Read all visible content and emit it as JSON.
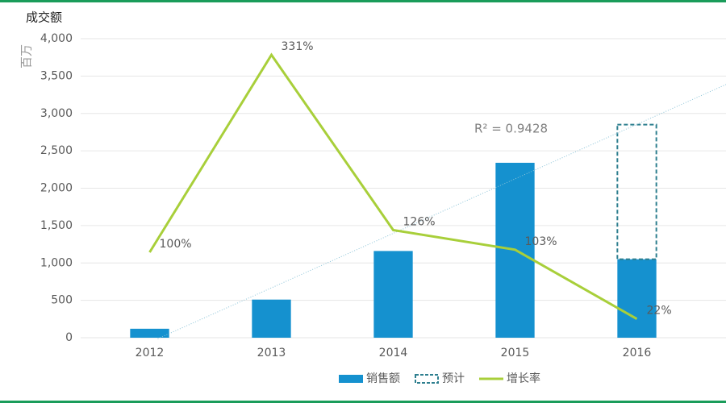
{
  "chart_data": {
    "type": "bar",
    "title": "成交额",
    "y_label": "百万",
    "annotation": "R² = 0.9428",
    "categories": [
      "2012",
      "2013",
      "2014",
      "2015",
      "2016"
    ],
    "series": [
      {
        "name": "销售额",
        "type": "bar",
        "color": "#1591cf",
        "values": [
          120,
          510,
          1160,
          2340,
          1050
        ]
      },
      {
        "name": "预计",
        "type": "bar",
        "stacked": true,
        "dashed": true,
        "color": "#2e7f8f",
        "values": [
          null,
          null,
          null,
          null,
          1800
        ]
      },
      {
        "name": "增长率",
        "type": "line",
        "axis": "y2",
        "color": "#a8cf3a",
        "values": [
          100,
          331,
          126,
          103,
          22
        ],
        "value_labels": [
          "100%",
          "331%",
          "126%",
          "103%",
          "22%"
        ]
      }
    ],
    "ylim": [
      0,
      4000
    ],
    "yticks": [
      0,
      {
        "value": 500,
        "label": "500"
      },
      {
        "value": 1000,
        "label": "1,000"
      },
      {
        "value": 1500,
        "label": "1,500"
      },
      {
        "value": 2000,
        "label": "2,000"
      },
      {
        "value": 2500,
        "label": "2,500"
      },
      {
        "value": 3000,
        "label": "3,000"
      },
      {
        "value": 3500,
        "label": "3,500"
      },
      {
        "value": 4000,
        "label": "4,000"
      }
    ],
    "y2lim": [
      0,
      350
    ],
    "grid": true,
    "trendline": true,
    "legend": "bottom"
  }
}
